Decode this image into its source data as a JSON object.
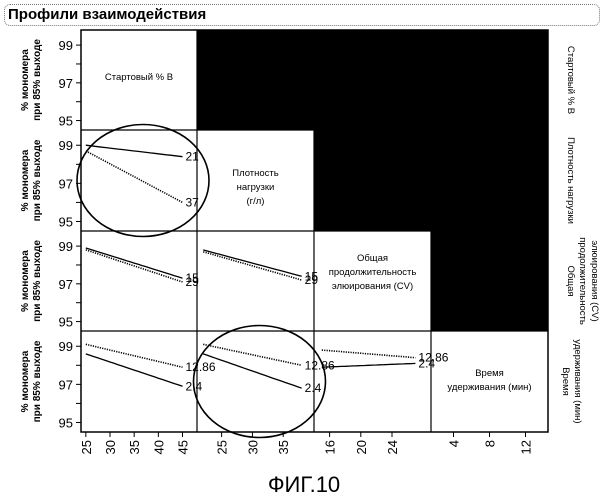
{
  "title": "Профили взаимодействия",
  "caption": "ФИГ.10",
  "colors": {
    "background": "#ffffff",
    "ink": "#000000",
    "filled": "#000000"
  },
  "chart_data": {
    "type": "line",
    "layout": "scatterplot-matrix",
    "y_label": "% мономера при 85% выходе",
    "y_ticks": [
      95,
      96,
      97,
      98,
      99
    ],
    "y_tick_labels": [
      "95",
      "97",
      "99"
    ],
    "y_range": [
      94.5,
      99.8
    ],
    "factors": [
      {
        "name": "Стартовый % B",
        "right_label": "Стартовый % B",
        "range": [
          24,
          48
        ],
        "ticks": [
          25,
          30,
          35,
          40,
          45
        ]
      },
      {
        "name": "Плотность нагрузки (г/л)",
        "right_label": "Плотность нагрузки",
        "range": [
          21,
          40
        ],
        "ticks": [
          25,
          30,
          35
        ]
      },
      {
        "name": "Общая продолжительность элюирования (CV)",
        "right_label": "Общая продолжительность элюирования (CV)",
        "range": [
          14,
          29
        ],
        "ticks": [
          16,
          20,
          24
        ]
      },
      {
        "name": "Время удерживания (мин)",
        "right_label": "Время удерживания (мин)",
        "range": [
          1.5,
          14.5
        ],
        "ticks": [
          4,
          8,
          12
        ]
      }
    ],
    "panels": [
      {
        "row": 1,
        "col": 0,
        "series": [
          {
            "name": "21",
            "style": "solid",
            "x": [
              25,
              45
            ],
            "y": [
              99.0,
              98.4
            ]
          },
          {
            "name": "37",
            "style": "dotted",
            "x": [
              25,
              45
            ],
            "y": [
              98.7,
              96.0
            ]
          }
        ]
      },
      {
        "row": 2,
        "col": 0,
        "series": [
          {
            "name": "15",
            "style": "solid",
            "x": [
              25,
              45
            ],
            "y": [
              98.9,
              97.3
            ]
          },
          {
            "name": "29",
            "style": "dotted",
            "x": [
              25,
              45
            ],
            "y": [
              98.8,
              97.1
            ]
          }
        ]
      },
      {
        "row": 2,
        "col": 1,
        "series": [
          {
            "name": "15",
            "style": "solid",
            "x": [
              22,
              38
            ],
            "y": [
              98.8,
              97.4
            ]
          },
          {
            "name": "29",
            "style": "dotted",
            "x": [
              22,
              38
            ],
            "y": [
              98.7,
              97.2
            ]
          }
        ]
      },
      {
        "row": 3,
        "col": 0,
        "series": [
          {
            "name": "12.86",
            "style": "dotted",
            "x": [
              25,
              45
            ],
            "y": [
              99.1,
              97.9
            ]
          },
          {
            "name": "2.4",
            "style": "solid",
            "x": [
              25,
              45
            ],
            "y": [
              98.6,
              96.9
            ]
          }
        ]
      },
      {
        "row": 3,
        "col": 1,
        "series": [
          {
            "name": "12.86",
            "style": "dotted",
            "x": [
              22,
              38
            ],
            "y": [
              99.1,
              98.0
            ]
          },
          {
            "name": "2.4",
            "style": "solid",
            "x": [
              22,
              38
            ],
            "y": [
              98.6,
              96.8
            ]
          }
        ]
      },
      {
        "row": 3,
        "col": 2,
        "series": [
          {
            "name": "12.86",
            "style": "dotted",
            "x": [
              15,
              27
            ],
            "y": [
              98.8,
              98.4
            ]
          },
          {
            "name": "2.4",
            "style": "solid",
            "x": [
              15,
              27
            ],
            "y": [
              97.9,
              98.1
            ]
          }
        ]
      }
    ],
    "annotations": [
      {
        "type": "circle",
        "row": 1,
        "col": 0
      },
      {
        "type": "circle",
        "row": 3,
        "col": 1
      }
    ]
  }
}
